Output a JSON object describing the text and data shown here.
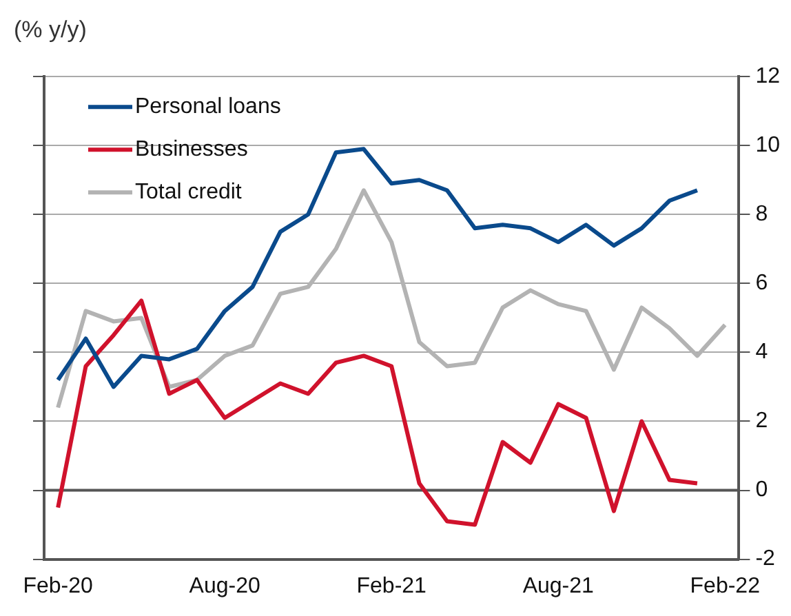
{
  "chart_data": {
    "type": "line",
    "subtitle": "(% y/y)",
    "categories": [
      "Feb-20",
      null,
      null,
      null,
      null,
      null,
      "Aug-20",
      null,
      null,
      null,
      null,
      null,
      "Feb-21",
      null,
      null,
      null,
      null,
      null,
      "Aug-21",
      null,
      null,
      null,
      null,
      null,
      "Feb-22"
    ],
    "series": [
      {
        "name": "Personal loans",
        "color": "#0a4a8c",
        "values": [
          3.2,
          4.4,
          3.0,
          3.9,
          3.8,
          4.1,
          5.2,
          5.9,
          7.5,
          8.0,
          9.8,
          9.9,
          8.9,
          9.0,
          8.7,
          7.6,
          7.7,
          7.6,
          7.2,
          7.7,
          7.1,
          7.6,
          8.4,
          8.7,
          null
        ]
      },
      {
        "name": "Businesses",
        "color": "#d0122c",
        "values": [
          -0.5,
          3.6,
          4.5,
          5.5,
          2.8,
          3.2,
          2.1,
          2.6,
          3.1,
          2.8,
          3.7,
          3.9,
          3.6,
          0.2,
          -0.9,
          -1.0,
          1.4,
          0.8,
          2.5,
          2.1,
          -0.6,
          2.0,
          0.3,
          0.2,
          null
        ]
      },
      {
        "name": "Total credit",
        "color": "#b3b3b3",
        "values": [
          2.4,
          5.2,
          4.9,
          5.0,
          3.0,
          3.2,
          3.9,
          4.2,
          5.7,
          5.9,
          7.0,
          8.7,
          7.2,
          4.3,
          3.6,
          3.7,
          5.3,
          5.8,
          5.4,
          5.2,
          3.5,
          5.3,
          4.7,
          3.9,
          4.8
        ]
      }
    ],
    "ylim": [
      -2,
      12
    ],
    "yticks": [
      -2,
      0,
      2,
      4,
      6,
      8,
      10,
      12
    ],
    "grid": "y",
    "legend": "top left",
    "marker": "none",
    "line_style": "solid",
    "ref_lines": [
      {
        "axis": "y",
        "value": 0,
        "color": "#555555"
      }
    ]
  }
}
